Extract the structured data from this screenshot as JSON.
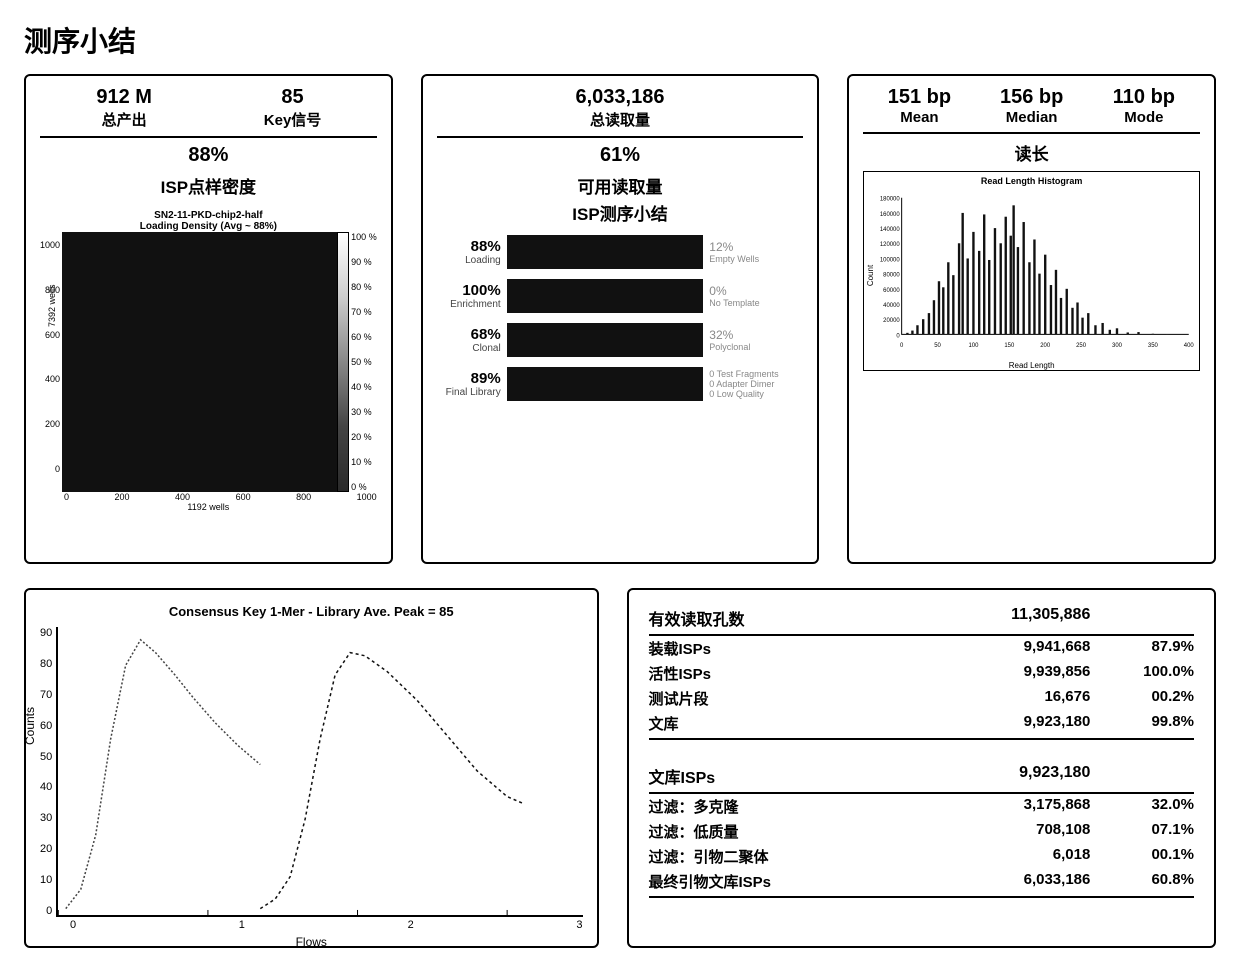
{
  "title": "测序小结",
  "colors": {
    "fg": "#000000",
    "bg": "#ffffff",
    "dark": "#111111",
    "muted": "#888888"
  },
  "panel1": {
    "stats": [
      {
        "value": "912 M",
        "label": "总产出"
      },
      {
        "value": "85",
        "label": "Key信号"
      }
    ],
    "pct": "88%",
    "subtitle": "ISP点样密度",
    "heatmap": {
      "title_line1": "SN2-11-PKD-chip2-half",
      "title_line2": "Loading Density (Avg ~ 88%)",
      "yticks": [
        "1000",
        "800",
        "600",
        "400",
        "200",
        "0"
      ],
      "xticks": [
        "0",
        "200",
        "400",
        "600",
        "800",
        "1000"
      ],
      "ylabel": "7392 wells",
      "xlabel": "1192 wells",
      "colorbar_ticks": [
        "100 %",
        "90 %",
        "80 %",
        "70 %",
        "60 %",
        "50 %",
        "40 %",
        "30 %",
        "20 %",
        "10 %",
        "0 %"
      ],
      "background": "#111111"
    }
  },
  "panel2": {
    "total": {
      "value": "6,033,186",
      "label": "总读取量"
    },
    "pct": "61%",
    "sub1": "可用读取量",
    "sub2": "ISP测序小结",
    "bars": [
      {
        "left_pct": "88%",
        "left_lbl": "Loading",
        "width": 100,
        "right_pct": "12%",
        "right_lbl": "Empty Wells"
      },
      {
        "left_pct": "100%",
        "left_lbl": "Enrichment",
        "width": 100,
        "right_pct": "0%",
        "right_lbl": "No Template"
      },
      {
        "left_pct": "68%",
        "left_lbl": "Clonal",
        "width": 100,
        "right_pct": "32%",
        "right_lbl": "Polyclonal"
      },
      {
        "left_pct": "89%",
        "left_lbl": "Final Library",
        "width": 70,
        "right_lines": [
          "0   Test Fragments",
          "0   Adapter Dimer",
          "0   Low Quality"
        ]
      }
    ]
  },
  "panel3": {
    "stats": [
      {
        "value": "151 bp",
        "label": "Mean"
      },
      {
        "value": "156 bp",
        "label": "Median"
      },
      {
        "value": "110 bp",
        "label": "Mode"
      }
    ],
    "subtitle": "读长",
    "histogram": {
      "title": "Read Length Histogram",
      "ylabel": "Count",
      "xlabel": "Read Length",
      "yticks": [
        "180000",
        "160000",
        "140000",
        "120000",
        "100000",
        "80000",
        "60000",
        "40000",
        "20000",
        "0"
      ],
      "xticks": [
        "0",
        "50",
        "100",
        "150",
        "200",
        "250",
        "300",
        "350",
        "400"
      ],
      "xrange": [
        0,
        400
      ],
      "yrange": [
        0,
        180000
      ],
      "bars": [
        [
          8,
          2000
        ],
        [
          15,
          5000
        ],
        [
          22,
          12000
        ],
        [
          30,
          20000
        ],
        [
          38,
          28000
        ],
        [
          45,
          45000
        ],
        [
          52,
          70000
        ],
        [
          58,
          62000
        ],
        [
          65,
          95000
        ],
        [
          72,
          78000
        ],
        [
          80,
          120000
        ],
        [
          85,
          160000
        ],
        [
          92,
          100000
        ],
        [
          100,
          135000
        ],
        [
          108,
          110000
        ],
        [
          115,
          158000
        ],
        [
          122,
          98000
        ],
        [
          130,
          140000
        ],
        [
          138,
          120000
        ],
        [
          145,
          155000
        ],
        [
          152,
          130000
        ],
        [
          156,
          170000
        ],
        [
          162,
          115000
        ],
        [
          170,
          148000
        ],
        [
          178,
          95000
        ],
        [
          185,
          125000
        ],
        [
          192,
          80000
        ],
        [
          200,
          105000
        ],
        [
          208,
          65000
        ],
        [
          215,
          85000
        ],
        [
          222,
          48000
        ],
        [
          230,
          60000
        ],
        [
          238,
          35000
        ],
        [
          245,
          42000
        ],
        [
          252,
          22000
        ],
        [
          260,
          28000
        ],
        [
          270,
          12000
        ],
        [
          280,
          15000
        ],
        [
          290,
          6000
        ],
        [
          300,
          8000
        ],
        [
          315,
          2500
        ],
        [
          330,
          3000
        ],
        [
          350,
          800
        ],
        [
          370,
          400
        ],
        [
          390,
          200
        ]
      ],
      "bar_color": "#111111"
    }
  },
  "panel4": {
    "title": "Consensus Key 1-Mer - Library Ave. Peak = 85",
    "ylabel": "Counts",
    "xlabel": "Flows",
    "yticks": [
      "90",
      "80",
      "70",
      "60",
      "50",
      "40",
      "30",
      "20",
      "10",
      "0"
    ],
    "xticks": [
      "0",
      "1",
      "2",
      "3"
    ],
    "yrange": [
      0,
      90
    ],
    "xrange": [
      0,
      3.5
    ],
    "curves": [
      {
        "color": "#444444",
        "dash": "2,2",
        "points": [
          [
            0.05,
            2
          ],
          [
            0.15,
            8
          ],
          [
            0.25,
            25
          ],
          [
            0.35,
            55
          ],
          [
            0.45,
            78
          ],
          [
            0.55,
            86
          ],
          [
            0.65,
            82
          ],
          [
            0.78,
            75
          ],
          [
            0.9,
            68
          ],
          [
            1.05,
            60
          ],
          [
            1.2,
            53
          ],
          [
            1.35,
            47
          ]
        ]
      },
      {
        "color": "#111111",
        "dash": "3,3",
        "points": [
          [
            1.35,
            2
          ],
          [
            1.45,
            5
          ],
          [
            1.55,
            12
          ],
          [
            1.65,
            30
          ],
          [
            1.75,
            55
          ],
          [
            1.85,
            75
          ],
          [
            1.95,
            82
          ],
          [
            2.05,
            81
          ],
          [
            2.2,
            76
          ],
          [
            2.4,
            67
          ],
          [
            2.6,
            56
          ],
          [
            2.8,
            45
          ],
          [
            3.0,
            37
          ],
          [
            3.1,
            35
          ]
        ]
      }
    ]
  },
  "panel5": {
    "sec1_head": {
      "label": "有效读取孔数",
      "value": "11,305,886"
    },
    "sec1_rows": [
      {
        "label": "装载ISPs",
        "value": "9,941,668",
        "pct": "87.9%"
      },
      {
        "label": "活性ISPs",
        "value": "9,939,856",
        "pct": "100.0%"
      },
      {
        "label": "测试片段",
        "value": "16,676",
        "pct": "00.2%"
      },
      {
        "label": "文库",
        "value": "9,923,180",
        "pct": "99.8%"
      }
    ],
    "sec2_head": {
      "label": "文库ISPs",
      "value": "9,923,180"
    },
    "sec2_rows": [
      {
        "label": "过滤：多克隆",
        "value": "3,175,868",
        "pct": "32.0%"
      },
      {
        "label": "过滤：低质量",
        "value": "708,108",
        "pct": "07.1%"
      },
      {
        "label": "过滤：引物二聚体",
        "value": "6,018",
        "pct": "00.1%"
      },
      {
        "label": "最终引物文库ISPs",
        "value": "6,033,186",
        "pct": "60.8%"
      }
    ]
  }
}
